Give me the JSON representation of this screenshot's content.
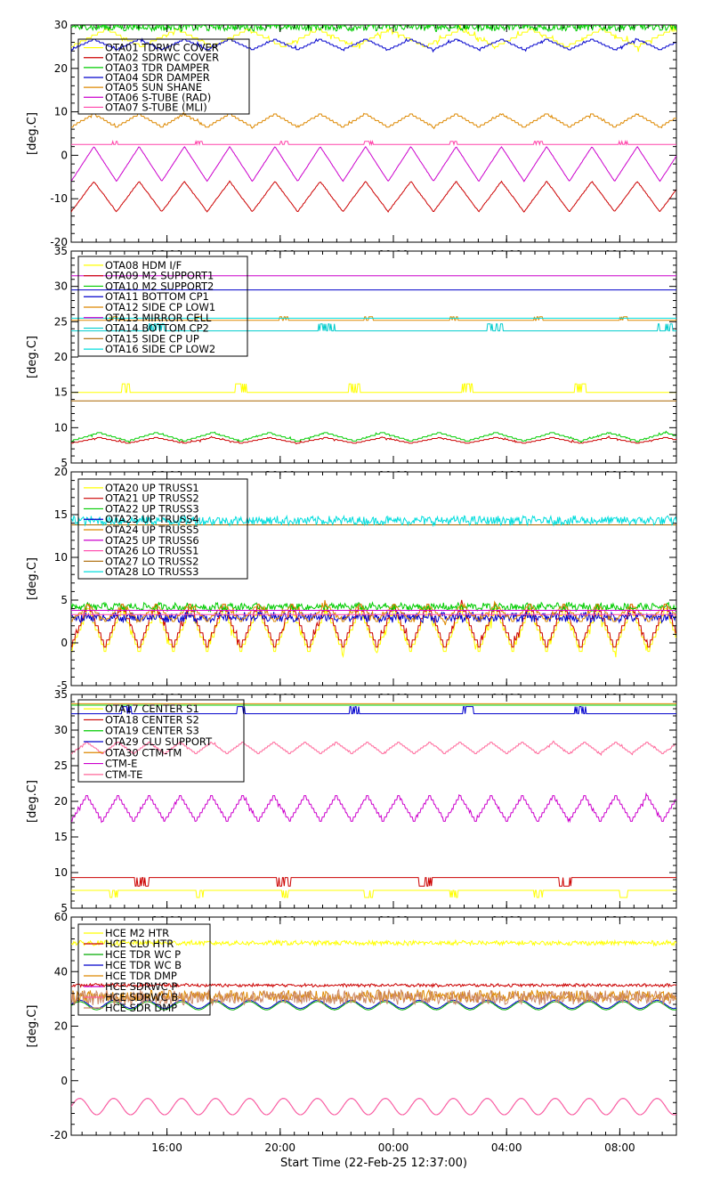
{
  "chart_data": {
    "type": "line",
    "xlabel": "Start Time (22-Feb-25 12:37:00)",
    "x_start": "12:37",
    "x_end": "10:00",
    "x_ticks": [
      "16:00",
      "20:00",
      "00:00",
      "04:00",
      "08:00"
    ],
    "panels": [
      {
        "ylabel": "[deg.C]",
        "ylim": [
          -20,
          30
        ],
        "yticks": [
          "-20",
          "-10",
          "0",
          "10",
          "20",
          "30"
        ],
        "series": [
          {
            "name": "OTA01 TDRWC COVER",
            "color": "#ffff00",
            "pattern": "step",
            "base": 27,
            "amp": 2,
            "period": 2.5,
            "noise": 0.6
          },
          {
            "name": "OTA02 SDRWC COVER",
            "color": "#cc0000",
            "pattern": "tri",
            "base": -9.5,
            "amp": 3.5,
            "period": 1.6,
            "noise": 0.2
          },
          {
            "name": "OTA03 TDR DAMPER",
            "color": "#00cc00",
            "pattern": "noisy",
            "base": 29.5,
            "amp": 0.8,
            "period": 0.5,
            "noise": 0.8
          },
          {
            "name": "OTA04 SDR DAMPER",
            "color": "#0000cc",
            "pattern": "step",
            "base": 25.5,
            "amp": 1.2,
            "period": 1.6,
            "noise": 0.3
          },
          {
            "name": "OTA05 SUN SHANE",
            "color": "#dd8800",
            "pattern": "step",
            "base": 8,
            "amp": 1.5,
            "period": 1.6,
            "noise": 0.2
          },
          {
            "name": "OTA06 S-TUBE (RAD)",
            "color": "#cc00cc",
            "pattern": "tri",
            "base": -2,
            "amp": 4,
            "period": 1.6,
            "noise": 0.1
          },
          {
            "name": "OTA07 S-TUBE (MLI)",
            "color": "#ff44aa",
            "pattern": "spikes",
            "base": 2.5,
            "amp": 0.7,
            "period": 3,
            "noise": 0
          }
        ]
      },
      {
        "ylabel": "[deg.C]",
        "ylim": [
          5,
          35
        ],
        "yticks": [
          "5",
          "10",
          "15",
          "20",
          "25",
          "30",
          "35"
        ],
        "series": [
          {
            "name": "OTA08 HDM I/F",
            "color": "#ffff00",
            "pattern": "spikes",
            "base": 15,
            "amp": 1.2,
            "period": 4,
            "noise": 0
          },
          {
            "name": "OTA09 M2 SUPPORT1",
            "color": "#cc0000",
            "pattern": "step",
            "base": 8.2,
            "amp": 0.4,
            "period": 2,
            "noise": 0.1
          },
          {
            "name": "OTA10 M2 SUPPORT2",
            "color": "#00cc00",
            "pattern": "step",
            "base": 8.7,
            "amp": 0.6,
            "period": 2,
            "noise": 0.1
          },
          {
            "name": "OTA11 BOTTOM CP1",
            "color": "#0000cc",
            "pattern": "flat",
            "base": 29.5,
            "amp": 0,
            "period": 1,
            "noise": 0
          },
          {
            "name": "OTA12 SIDE CP LOW1",
            "color": "#dd8800",
            "pattern": "spikes",
            "base": 25.2,
            "amp": 0.5,
            "period": 3,
            "noise": 0
          },
          {
            "name": "OTA13 MIRROR CELL",
            "color": "#cc00cc",
            "pattern": "flat",
            "base": 31.5,
            "amp": 0,
            "period": 1,
            "noise": 0
          },
          {
            "name": "OTA14 BOTTOM CP2",
            "color": "#00cccc",
            "pattern": "spikes",
            "base": 23.7,
            "amp": 1,
            "period": 6,
            "noise": 0
          },
          {
            "name": "OTA15 SIDE CP UP",
            "color": "#aa6600",
            "pattern": "flat",
            "base": 13.8,
            "amp": 0,
            "period": 1,
            "noise": 0
          },
          {
            "name": "OTA16 SIDE CP LOW2",
            "color": "#00dddd",
            "pattern": "flat",
            "base": 25.5,
            "amp": 0,
            "period": 1,
            "noise": 0
          }
        ]
      },
      {
        "ylabel": "[deg.C]",
        "ylim": [
          -5,
          20
        ],
        "yticks": [
          "-5",
          "0",
          "5",
          "10",
          "15",
          "20"
        ],
        "series": [
          {
            "name": "OTA20 UP TRUSS1",
            "color": "#ffff00",
            "pattern": "step",
            "base": 1.5,
            "amp": 2.5,
            "period": 1.2,
            "noise": 0.4
          },
          {
            "name": "OTA21 UP TRUSS2",
            "color": "#cc0000",
            "pattern": "step",
            "base": 2,
            "amp": 2.5,
            "period": 1.2,
            "noise": 0.3
          },
          {
            "name": "OTA22 UP TRUSS3",
            "color": "#00cc00",
            "pattern": "noisy",
            "base": 4.2,
            "amp": 0.4,
            "period": 0.5,
            "noise": 0.4
          },
          {
            "name": "OTA23 UP TRUSS4",
            "color": "#0000cc",
            "pattern": "noisy",
            "base": 3,
            "amp": 0.5,
            "period": 0.5,
            "noise": 0.5
          },
          {
            "name": "OTA24 UP TRUSS5",
            "color": "#dd8800",
            "pattern": "step",
            "base": 3.5,
            "amp": 1,
            "period": 1.2,
            "noise": 0.3
          },
          {
            "name": "OTA25 UP TRUSS6",
            "color": "#cc00cc",
            "pattern": "flat",
            "base": 3.8,
            "amp": 0,
            "period": 1,
            "noise": 0
          },
          {
            "name": "OTA26 LO TRUSS1",
            "color": "#ff44aa",
            "pattern": "flat",
            "base": 3.3,
            "amp": 0,
            "period": 1,
            "noise": 0
          },
          {
            "name": "OTA27 LO TRUSS2",
            "color": "#aa6600",
            "pattern": "flat",
            "base": 13.8,
            "amp": 0,
            "period": 1,
            "noise": 0
          },
          {
            "name": "OTA28 LO TRUSS3",
            "color": "#00dddd",
            "pattern": "noisy",
            "base": 14.3,
            "amp": 0.3,
            "period": 0.3,
            "noise": 0.5
          }
        ]
      },
      {
        "ylabel": "[deg.C]",
        "ylim": [
          5,
          35
        ],
        "yticks": [
          "5",
          "10",
          "15",
          "20",
          "25",
          "30",
          "35"
        ],
        "series": [
          {
            "name": "OTA17 CENTER S1",
            "color": "#ffff00",
            "pattern": "spikes",
            "base": 7.5,
            "amp": -1,
            "period": 3,
            "noise": 0
          },
          {
            "name": "OTA18 CENTER S2",
            "color": "#cc0000",
            "pattern": "spikes",
            "base": 9.3,
            "amp": -1.2,
            "period": 5,
            "noise": 0
          },
          {
            "name": "OTA19 CENTER S3",
            "color": "#00cc00",
            "pattern": "flat",
            "base": 33.5,
            "amp": 0,
            "period": 1,
            "noise": 0
          },
          {
            "name": "OTA29 CLU SUPPORT",
            "color": "#0000cc",
            "pattern": "spikes",
            "base": 32.3,
            "amp": 1,
            "period": 4,
            "noise": 0
          },
          {
            "name": "OTA30 CTM-TM",
            "color": "#dd8800",
            "pattern": "flat",
            "base": 33.7,
            "amp": 0,
            "period": 1,
            "noise": 0
          },
          {
            "name": "CTM-E",
            "color": "#cc00cc",
            "pattern": "step",
            "base": 19,
            "amp": 1.8,
            "period": 1.1,
            "noise": 0.2
          },
          {
            "name": "CTM-TE",
            "color": "#ff6699",
            "pattern": "step",
            "base": 27.5,
            "amp": 0.8,
            "period": 1.1,
            "noise": 0.1
          }
        ]
      },
      {
        "ylabel": "[deg.C]",
        "ylim": [
          -20,
          60
        ],
        "yticks": [
          "-20",
          "0",
          "20",
          "40",
          "60"
        ],
        "series": [
          {
            "name": "HCE M2 HTR",
            "color": "#ffff00",
            "pattern": "noisy",
            "base": 50.5,
            "amp": 0.6,
            "period": 0.3,
            "noise": 0.8
          },
          {
            "name": "HCE CLU HTR",
            "color": "#cc0000",
            "pattern": "noisy",
            "base": 35,
            "amp": 0.5,
            "period": 0.2,
            "noise": 0.5
          },
          {
            "name": "HCE TDR WC P",
            "color": "#00aa00",
            "pattern": "sine",
            "base": 27.5,
            "amp": 1.5,
            "period": 1.2,
            "noise": 0.1
          },
          {
            "name": "HCE TDR WC B",
            "color": "#0000cc",
            "pattern": "sine",
            "base": 28,
            "amp": 1.5,
            "period": 1.2,
            "noise": 0.1
          },
          {
            "name": "HCE TDR DMP",
            "color": "#dd8800",
            "pattern": "noisy",
            "base": 31,
            "amp": 1,
            "period": 0.2,
            "noise": 2
          },
          {
            "name": "HCE SDRWC P",
            "color": "#cc00cc",
            "pattern": "sine",
            "base": -9.5,
            "amp": 3,
            "period": 1.2,
            "noise": 0
          },
          {
            "name": "HCE SDRWC B",
            "color": "#ff6699",
            "pattern": "sine",
            "base": -9.5,
            "amp": 3,
            "period": 1.2,
            "noise": 0
          },
          {
            "name": "HCE SDR DMP",
            "color": "#cc8866",
            "pattern": "noisy",
            "base": 30.5,
            "amp": 1.5,
            "period": 0.2,
            "noise": 2.5
          }
        ]
      }
    ]
  }
}
